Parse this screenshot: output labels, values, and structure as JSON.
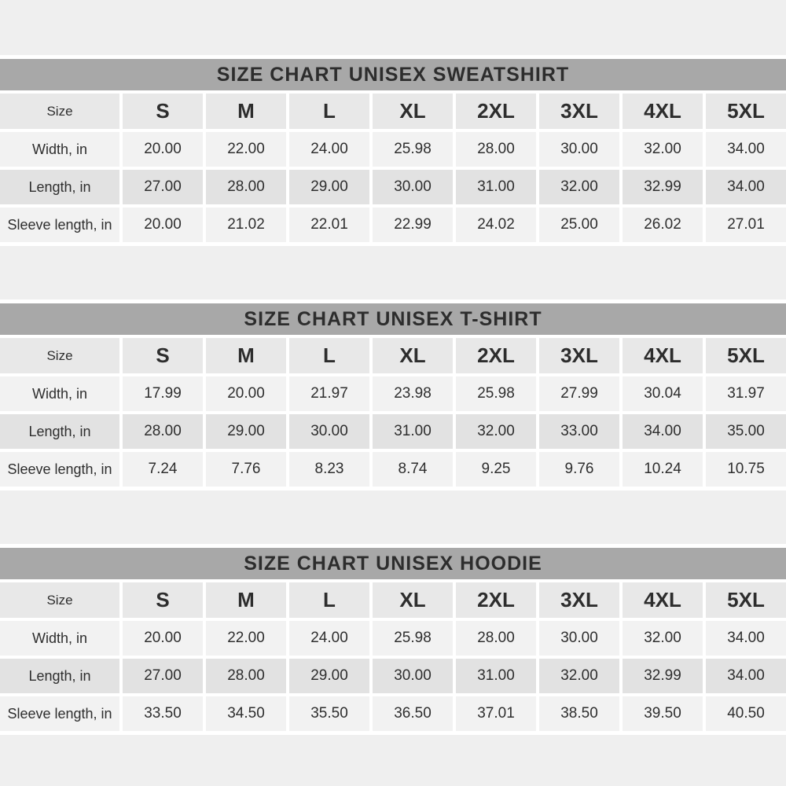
{
  "colors": {
    "page_background": "#efefef",
    "title_bar": "#a8a8a8",
    "title_text": "#2d2d2d",
    "header_row": "#e8e8e8",
    "row_light": "#f2f2f2",
    "row_dark": "#e2e2e2",
    "separator": "#ffffff"
  },
  "tables": [
    {
      "title": "SIZE CHART UNISEX SWEATSHIRT",
      "columns": [
        "Size",
        "S",
        "M",
        "L",
        "XL",
        "2XL",
        "3XL",
        "4XL",
        "5XL"
      ],
      "rows": [
        {
          "label": "Width, in",
          "values": [
            "20.00",
            "22.00",
            "24.00",
            "25.98",
            "28.00",
            "30.00",
            "32.00",
            "34.00"
          ]
        },
        {
          "label": "Length, in",
          "values": [
            "27.00",
            "28.00",
            "29.00",
            "30.00",
            "31.00",
            "32.00",
            "32.99",
            "34.00"
          ]
        },
        {
          "label": "Sleeve length, in",
          "values": [
            "20.00",
            "21.02",
            "22.01",
            "22.99",
            "24.02",
            "25.00",
            "26.02",
            "27.01"
          ]
        }
      ]
    },
    {
      "title": "SIZE CHART UNISEX T-SHIRT",
      "columns": [
        "Size",
        "S",
        "M",
        "L",
        "XL",
        "2XL",
        "3XL",
        "4XL",
        "5XL"
      ],
      "rows": [
        {
          "label": "Width, in",
          "values": [
            "17.99",
            "20.00",
            "21.97",
            "23.98",
            "25.98",
            "27.99",
            "30.04",
            "31.97"
          ]
        },
        {
          "label": "Length, in",
          "values": [
            "28.00",
            "29.00",
            "30.00",
            "31.00",
            "32.00",
            "33.00",
            "34.00",
            "35.00"
          ]
        },
        {
          "label": "Sleeve length, in",
          "values": [
            "7.24",
            "7.76",
            "8.23",
            "8.74",
            "9.25",
            "9.76",
            "10.24",
            "10.75"
          ]
        }
      ]
    },
    {
      "title": "SIZE CHART UNISEX HOODIE",
      "columns": [
        "Size",
        "S",
        "M",
        "L",
        "XL",
        "2XL",
        "3XL",
        "4XL",
        "5XL"
      ],
      "rows": [
        {
          "label": "Width, in",
          "values": [
            "20.00",
            "22.00",
            "24.00",
            "25.98",
            "28.00",
            "30.00",
            "32.00",
            "34.00"
          ]
        },
        {
          "label": "Length, in",
          "values": [
            "27.00",
            "28.00",
            "29.00",
            "30.00",
            "31.00",
            "32.00",
            "32.99",
            "34.00"
          ]
        },
        {
          "label": "Sleeve length, in",
          "values": [
            "33.50",
            "34.50",
            "35.50",
            "36.50",
            "37.01",
            "38.50",
            "39.50",
            "40.50"
          ]
        }
      ]
    }
  ]
}
